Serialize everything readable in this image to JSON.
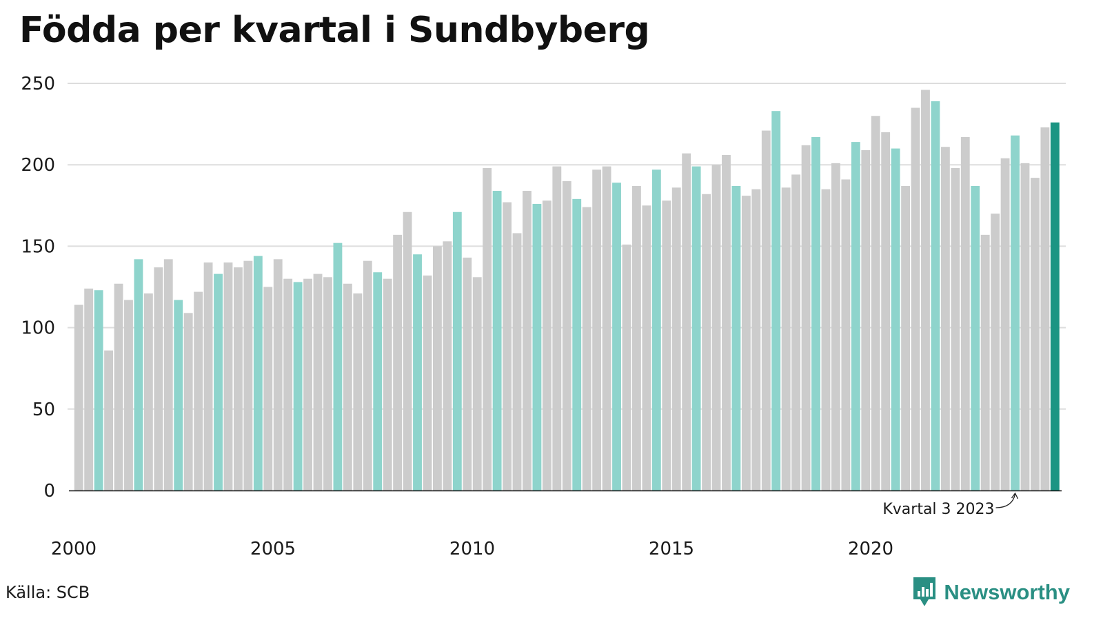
{
  "title": "Födda per kvartal i Sundbyberg",
  "source": "Källa: SCB",
  "brand": {
    "name": "Newsworthy",
    "icon": "bar-chart-logo-icon"
  },
  "colors": {
    "other_quarter": "#cccccc",
    "highlight_quarter": "#8ed4cc",
    "latest": "#1b9583",
    "grid": "#dddddd",
    "axis": "#111111",
    "brand": "#2a8f83"
  },
  "chart_data": {
    "type": "bar",
    "title": "Födda per kvartal i Sundbyberg",
    "xlabel": "",
    "ylabel": "",
    "ylim": [
      0,
      250
    ],
    "yticks": [
      0,
      50,
      100,
      150,
      200,
      250
    ],
    "grid": true,
    "x_tick_labels": [
      2000,
      2005,
      2010,
      2015,
      2020
    ],
    "start": {
      "year": 2000,
      "quarter": 1
    },
    "highlight_quarter": 3,
    "annotation": {
      "text": "Kvartal 3 2023",
      "year": 2023,
      "quarter": 3
    },
    "values": [
      114,
      124,
      123,
      86,
      127,
      117,
      142,
      121,
      137,
      142,
      117,
      109,
      122,
      140,
      133,
      140,
      137,
      141,
      144,
      125,
      142,
      130,
      128,
      130,
      133,
      131,
      152,
      127,
      121,
      141,
      134,
      130,
      157,
      171,
      145,
      132,
      150,
      153,
      171,
      143,
      131,
      198,
      184,
      177,
      158,
      184,
      176,
      178,
      199,
      190,
      179,
      174,
      197,
      199,
      189,
      151,
      187,
      175,
      197,
      178,
      186,
      207,
      199,
      182,
      200,
      206,
      187,
      181,
      185,
      221,
      233,
      186,
      194,
      212,
      217,
      185,
      201,
      191,
      214,
      209,
      230,
      220,
      210,
      187,
      235,
      246,
      239,
      211,
      198,
      217,
      187,
      157,
      170,
      204,
      218,
      201,
      192,
      223,
      226
    ]
  }
}
